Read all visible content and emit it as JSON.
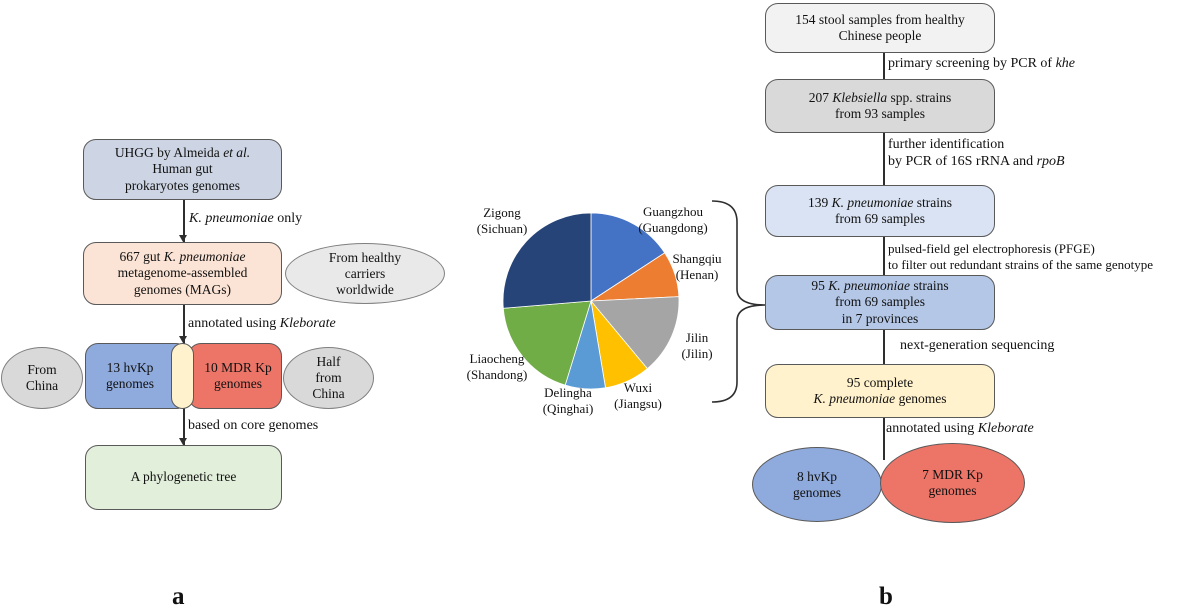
{
  "figure": {
    "panel_a_label": "a",
    "panel_b_label": "b"
  },
  "colors": {
    "uhgg_box": "#CDD5E4",
    "mags_box": "#FBE3D5",
    "hvkp_blue": "#8FAADC",
    "mdr_red": "#EC7568",
    "venn_overlap": "#FFF2CC",
    "gray_ellipse": "#D9D9D9",
    "carriers_ellipse": "#E9E9E9",
    "tree_box": "#E2EFDA",
    "stool_box": "#F2F2F2",
    "klebsiella_box": "#D9D9D9",
    "strains139_box": "#DAE3F3",
    "strains95_box": "#B4C7E7",
    "complete95_box": "#FFF2CC"
  },
  "flowchart_a": {
    "uhgg_box": [
      [
        {
          "t": "UHGG by Almeida "
        },
        {
          "t": "et al.",
          "i": true
        }
      ],
      [
        {
          "t": "Human gut"
        }
      ],
      [
        {
          "t": "prokaryotes genomes"
        }
      ]
    ],
    "edge_kp_only": [
      [
        {
          "t": "K. pneumoniae",
          "i": true
        },
        {
          "t": " only"
        }
      ]
    ],
    "mags_box": [
      [
        {
          "t": "667 gut "
        },
        {
          "t": "K. pneumoniae",
          "i": true
        }
      ],
      [
        {
          "t": "metagenome-assembled"
        }
      ],
      [
        {
          "t": "genomes (MAGs)"
        }
      ]
    ],
    "carriers_ellipse": [
      [
        {
          "t": "From healthy"
        }
      ],
      [
        {
          "t": "carriers"
        }
      ],
      [
        {
          "t": "worldwide"
        }
      ]
    ],
    "edge_kleborate": [
      [
        {
          "t": "annotated using "
        },
        {
          "t": "Kleborate",
          "i": true
        }
      ]
    ],
    "from_china_ellipse": [
      [
        {
          "t": "From"
        }
      ],
      [
        {
          "t": "China"
        }
      ]
    ],
    "hvkp_box": [
      [
        {
          "t": "13 hvKp"
        }
      ],
      [
        {
          "t": "genomes"
        }
      ]
    ],
    "mdr_box": [
      [
        {
          "t": "10 MDR Kp"
        }
      ],
      [
        {
          "t": "genomes"
        }
      ]
    ],
    "half_china_ellipse": [
      [
        {
          "t": "Half"
        }
      ],
      [
        {
          "t": "from"
        }
      ],
      [
        {
          "t": "China"
        }
      ]
    ],
    "edge_core_genomes": [
      [
        {
          "t": "based on core genomes"
        }
      ]
    ],
    "tree_box": [
      [
        {
          "t": "A phylogenetic tree"
        }
      ]
    ]
  },
  "flowchart_b": {
    "stool_box": [
      [
        {
          "t": "154 stool samples from healthy"
        }
      ],
      [
        {
          "t": "Chinese people"
        }
      ]
    ],
    "edge_khe": [
      [
        {
          "t": "primary screening by PCR of "
        },
        {
          "t": "khe",
          "i": true
        }
      ]
    ],
    "klebsiella_box": [
      [
        {
          "t": "207 "
        },
        {
          "t": "Klebsiella",
          "i": true
        },
        {
          "t": " spp. strains"
        }
      ],
      [
        {
          "t": "from 93 samples"
        }
      ]
    ],
    "edge_16s": [
      [
        {
          "t": "further identification"
        }
      ],
      [
        {
          "t": "by PCR of 16S rRNA and "
        },
        {
          "t": "rpoB",
          "i": true
        }
      ]
    ],
    "strains139_box": [
      [
        {
          "t": "139 "
        },
        {
          "t": "K. pneumoniae",
          "i": true
        },
        {
          "t": " strains"
        }
      ],
      [
        {
          "t": "from 69 samples"
        }
      ]
    ],
    "edge_pfge": [
      [
        {
          "t": "pulsed-field gel electrophoresis (PFGE)"
        }
      ],
      [
        {
          "t": "to filter out redundant strains of the same genotype"
        }
      ]
    ],
    "strains95_box": [
      [
        {
          "t": "95 "
        },
        {
          "t": "K. pneumoniae",
          "i": true
        },
        {
          "t": " strains"
        }
      ],
      [
        {
          "t": "from 69 samples"
        }
      ],
      [
        {
          "t": "in 7 provinces"
        }
      ]
    ],
    "edge_ngs": [
      [
        {
          "t": "next-generation sequencing"
        }
      ]
    ],
    "complete95_box": [
      [
        {
          "t": "95 complete"
        }
      ],
      [
        {
          "t": "K. pneumoniae",
          "i": true
        },
        {
          "t": " genomes"
        }
      ]
    ],
    "edge_kleborate": [
      [
        {
          "t": "annotated using "
        },
        {
          "t": "Kleborate",
          "i": true
        }
      ]
    ],
    "hvkp_ellipse": [
      [
        {
          "t": "8 hvKp"
        }
      ],
      [
        {
          "t": "genomes"
        }
      ]
    ],
    "mdr_ellipse": [
      [
        {
          "t": "7 MDR Kp"
        }
      ],
      [
        {
          "t": "genomes"
        }
      ]
    ]
  },
  "chart_data": {
    "type": "pie",
    "title": "",
    "total": 95,
    "start_angle_deg": 0,
    "direction": "clockwise",
    "legend_position": "direct labels around pie",
    "slices": [
      {
        "city": "Guangzhou",
        "province": "(Guangdong)",
        "value": 15,
        "color": "#4472C4"
      },
      {
        "city": "Shangqiu",
        "province": "(Henan)",
        "value": 8,
        "color": "#ED7D31"
      },
      {
        "city": "Jilin",
        "province": "(Jilin)",
        "value": 14,
        "color": "#A5A5A5"
      },
      {
        "city": "Wuxi",
        "province": "(Jiangsu)",
        "value": 8,
        "color": "#FFC000"
      },
      {
        "city": "Delingha",
        "province": "(Qinghai)",
        "value": 7,
        "color": "#5B9BD5"
      },
      {
        "city": "Liaocheng",
        "province": "(Shandong)",
        "value": 18,
        "color": "#70AD47"
      },
      {
        "city": "Zigong",
        "province": "(Sichuan)",
        "value": 25,
        "color": "#264478"
      }
    ]
  }
}
